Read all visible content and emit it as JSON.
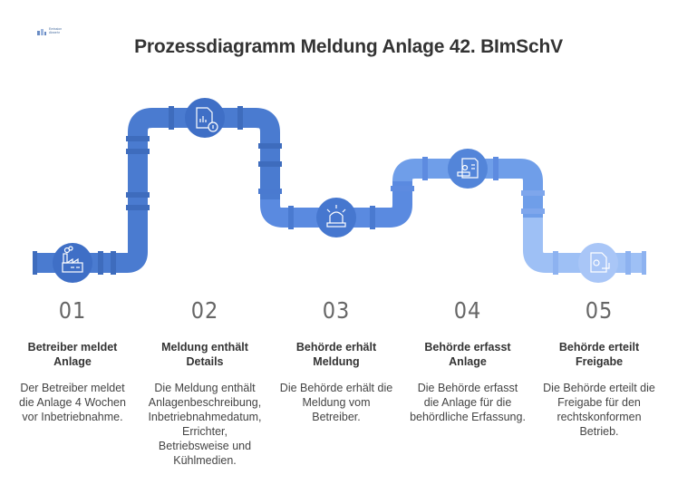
{
  "logo": {
    "text": "Emission Abwehr"
  },
  "title": "Prozessdiagramm Meldung Anlage 42. BImSchV",
  "colors": {
    "pipe_dark": "#4a7bd0",
    "pipe_mid": "#6596e6",
    "pipe_light": "#8fb3f2",
    "circle_dark": "#3f6fc6",
    "circle_light": "#a9c6f7"
  },
  "steps": [
    {
      "num": "01",
      "title": "Betreiber meldet Anlage",
      "desc": "Der Betreiber meldet die Anlage 4 Wochen vor Inbetriebnahme.",
      "icon": "factory-icon"
    },
    {
      "num": "02",
      "title": "Meldung enthält Details",
      "desc": "Die Meldung enthält Anlagenbeschreibung, Inbetriebnahmedatum, Errichter, Betriebsweise und Kühlmedien.",
      "icon": "document-info-icon"
    },
    {
      "num": "03",
      "title": "Behörde erhält Meldung",
      "desc": "Die Behörde erhält die Meldung vom Betreiber.",
      "icon": "alarm-light-icon"
    },
    {
      "num": "04",
      "title": "Behörde erfasst Anlage",
      "desc": "Die Behörde erfasst die Anlage für die behördliche Erfassung.",
      "icon": "stamp-document-icon"
    },
    {
      "num": "05",
      "title": "Behörde erteilt Freigabe",
      "desc": "Die Behörde erteilt die Freigabe für den rechtskonformen Betrieb.",
      "icon": "approval-document-icon"
    }
  ]
}
